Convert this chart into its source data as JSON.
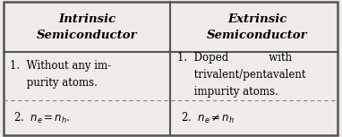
{
  "fig_width": 3.82,
  "fig_height": 1.53,
  "dpi": 100,
  "bg_color": "#f0ede8",
  "border_color": "#555555",
  "divider_color": "#888888",
  "header_left": "Intrinsic\nSemiconductor",
  "header_right": "Extrinsic\nSemiconductor",
  "row1_left_lines": [
    "1.  Without any im-",
    "     purity atoms."
  ],
  "row1_right_lines": [
    "1.  Doped            with",
    "     trivalent/pentavalent",
    "     impurity atoms."
  ],
  "row2_left": "2.  $n_e = n_h$.",
  "row2_right": "2.  $n_e \\neq n_h$",
  "header_fontsize": 9.5,
  "body_fontsize": 8.5,
  "col_split": 0.5
}
